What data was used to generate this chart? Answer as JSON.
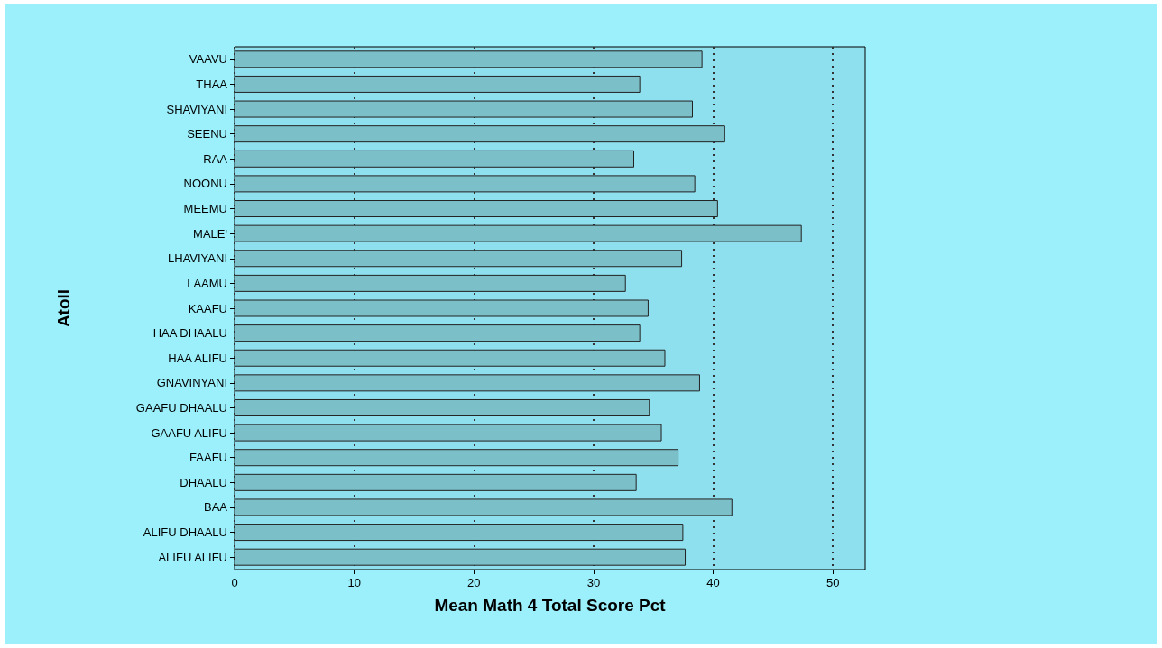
{
  "chart_data": {
    "type": "bar",
    "orientation": "horizontal",
    "xlabel": "Mean Math 4 Total Score Pct",
    "ylabel": "Atoll",
    "categories": [
      "VAAVU",
      "THAA",
      "SHAVIYANI",
      "SEENU",
      "RAA",
      "NOONU",
      "MEEMU",
      "MALE'",
      "LHAVIYANI",
      "LAAMU",
      "KAAFU",
      "HAA DHAALU",
      "HAA ALIFU",
      "GNAVINYANI",
      "GAAFU DHAALU",
      "GAAFU ALIFU",
      "FAAFU",
      "DHAALU",
      "BAA",
      "ALIFU DHAALU",
      "ALIFU ALIFU"
    ],
    "values": [
      39.1,
      33.9,
      38.3,
      41.0,
      33.4,
      38.5,
      40.4,
      47.4,
      37.4,
      32.7,
      34.6,
      33.9,
      36.0,
      38.9,
      34.7,
      35.7,
      37.1,
      33.6,
      41.6,
      37.5,
      37.7
    ],
    "color": "#7bbfc9",
    "xlim": [
      0,
      52.7
    ],
    "xticks": [
      0,
      10,
      20,
      30,
      40,
      50
    ],
    "grid": "x"
  }
}
